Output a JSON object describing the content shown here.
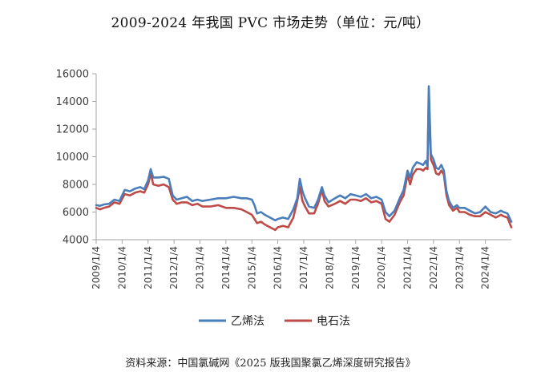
{
  "title": "2009-2024 年我国 PVC 市场走势（单位：元/吨）",
  "source": "资料来源：中国氯碱网《2025 版我国聚氯乙烯深度研究报告》",
  "chart_data": {
    "type": "line",
    "title": "2009-2024 年我国 PVC 市场走势（单位：元/吨）",
    "xlabel": "",
    "ylabel": "",
    "ylim": [
      4000,
      16000
    ],
    "yticks": [
      "16000",
      "14000",
      "12000",
      "10000",
      "8000",
      "6000",
      "4000"
    ],
    "xlim": [
      2009.0,
      2025.0
    ],
    "xticks": [
      "2009/1/4",
      "2010/1/4",
      "2011/1/4",
      "2012/1/4",
      "2013/1/4",
      "2014/1/4",
      "2015/1/4",
      "2016/1/4",
      "2017/1/4",
      "2018/1/4",
      "2019/1/4",
      "2020/1/4",
      "2021/1/4",
      "2022/1/4",
      "2023/1/4",
      "2024/1/4"
    ],
    "grid": false,
    "legend_position": "bottom",
    "colors": {
      "乙烯法": "#4a7ebb",
      "电石法": "#be4b48"
    },
    "x": [
      2009.0,
      2009.15,
      2009.3,
      2009.5,
      2009.7,
      2009.9,
      2010.1,
      2010.3,
      2010.5,
      2010.7,
      2010.85,
      2011.0,
      2011.1,
      2011.2,
      2011.4,
      2011.6,
      2011.8,
      2011.95,
      2012.1,
      2012.3,
      2012.5,
      2012.7,
      2012.9,
      2013.1,
      2013.4,
      2013.7,
      2014.0,
      2014.3,
      2014.6,
      2014.8,
      2015.0,
      2015.1,
      2015.2,
      2015.35,
      2015.5,
      2015.7,
      2015.9,
      2016.0,
      2016.2,
      2016.4,
      2016.6,
      2016.75,
      2016.85,
      2016.95,
      2017.05,
      2017.2,
      2017.4,
      2017.55,
      2017.7,
      2017.8,
      2017.95,
      2018.2,
      2018.4,
      2018.6,
      2018.8,
      2019.0,
      2019.2,
      2019.4,
      2019.6,
      2019.8,
      2020.0,
      2020.15,
      2020.3,
      2020.5,
      2020.7,
      2020.85,
      2021.0,
      2021.1,
      2021.2,
      2021.35,
      2021.5,
      2021.6,
      2021.7,
      2021.77,
      2021.82,
      2021.9,
      2022.0,
      2022.1,
      2022.2,
      2022.3,
      2022.4,
      2022.5,
      2022.6,
      2022.75,
      2022.9,
      2023.0,
      2023.2,
      2023.4,
      2023.6,
      2023.8,
      2024.0,
      2024.2,
      2024.4,
      2024.6,
      2024.7,
      2024.85,
      2025.0
    ],
    "series": [
      {
        "name": "乙烯法",
        "values": [
          6500,
          6450,
          6550,
          6600,
          6900,
          6800,
          7600,
          7500,
          7700,
          7800,
          7650,
          8300,
          9100,
          8500,
          8500,
          8550,
          8400,
          7200,
          6900,
          7000,
          7100,
          6800,
          6900,
          6800,
          6900,
          7000,
          7000,
          7100,
          7000,
          7000,
          6900,
          6500,
          5900,
          6000,
          5800,
          5600,
          5400,
          5500,
          5600,
          5500,
          6200,
          7000,
          8400,
          7500,
          7000,
          6400,
          6300,
          6900,
          7800,
          7200,
          6700,
          7000,
          7200,
          7000,
          7300,
          7200,
          7100,
          7300,
          7000,
          7100,
          6900,
          6000,
          5700,
          6100,
          7000,
          7600,
          9000,
          8500,
          9200,
          9600,
          9500,
          9400,
          9700,
          9300,
          15100,
          10200,
          9800,
          9200,
          9100,
          9400,
          9000,
          7500,
          6800,
          6300,
          6500,
          6300,
          6300,
          6100,
          5900,
          6000,
          6400,
          6000,
          5900,
          6100,
          6000,
          5900,
          5300
        ]
      },
      {
        "name": "电石法",
        "values": [
          6300,
          6200,
          6300,
          6400,
          6700,
          6600,
          7300,
          7200,
          7400,
          7500,
          7400,
          8000,
          8800,
          8000,
          7900,
          8000,
          7800,
          6900,
          6600,
          6700,
          6700,
          6500,
          6600,
          6400,
          6400,
          6500,
          6300,
          6300,
          6200,
          6000,
          5800,
          5500,
          5200,
          5300,
          5100,
          4900,
          4700,
          4900,
          5000,
          4900,
          5600,
          6800,
          7800,
          6800,
          6400,
          5900,
          5900,
          6600,
          7600,
          6800,
          6400,
          6600,
          6800,
          6600,
          6900,
          6900,
          6800,
          7000,
          6700,
          6800,
          6600,
          5500,
          5300,
          5800,
          6700,
          7200,
          8700,
          8000,
          8700,
          9100,
          9100,
          9000,
          9200,
          9100,
          14600,
          9800,
          9400,
          8800,
          8700,
          9000,
          8700,
          7200,
          6500,
          6100,
          6300,
          6000,
          6000,
          5800,
          5700,
          5700,
          6000,
          5800,
          5600,
          5800,
          5700,
          5600,
          4900
        ]
      }
    ]
  }
}
